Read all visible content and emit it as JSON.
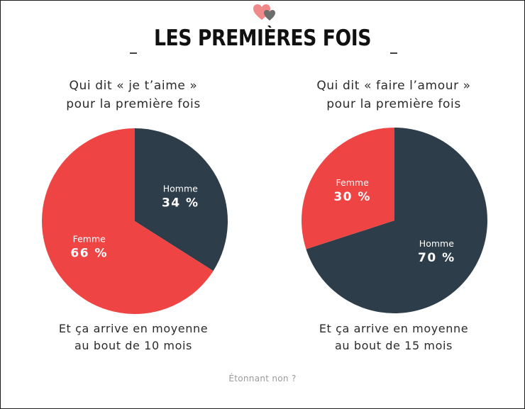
{
  "title": "LES PREMIÈRES FOIS",
  "footer": "Étonnant non ?",
  "colors": {
    "femme": "#ef4444",
    "homme": "#2d3e4a",
    "logo_pink": "#f08a8a",
    "logo_grey": "#6d6d6d"
  },
  "logo_icon": "two-hearts-icon",
  "chart_data": [
    {
      "type": "pie",
      "question": [
        "Qui dit « je t’aime »",
        "pour la première fois"
      ],
      "slices": [
        {
          "label": "Homme",
          "value": 34,
          "display": "34 %",
          "color": "#2d3e4a"
        },
        {
          "label": "Femme",
          "value": 66,
          "display": "66 %",
          "color": "#ef4444"
        }
      ],
      "note": [
        "Et ça arrive en moyenne",
        "au bout de 10 mois"
      ]
    },
    {
      "type": "pie",
      "question": [
        "Qui dit « faire l’amour »",
        "pour la première fois"
      ],
      "slices": [
        {
          "label": "Homme",
          "value": 70,
          "display": "70 %",
          "color": "#2d3e4a"
        },
        {
          "label": "Femme",
          "value": 30,
          "display": "30 %",
          "color": "#ef4444"
        }
      ],
      "note": [
        "Et ça arrive en moyenne",
        "au bout de 15 mois"
      ]
    }
  ]
}
